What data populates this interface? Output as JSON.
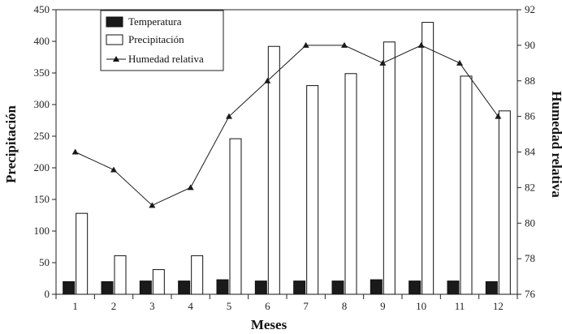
{
  "chart_data": {
    "type": "bar",
    "xlabel": "Meses",
    "ylabel": "Precipitación",
    "y2label": "Humedad relativa",
    "ylim": [
      0,
      450
    ],
    "y2lim": [
      76,
      92
    ],
    "yticks": [
      0,
      50,
      100,
      150,
      200,
      250,
      300,
      350,
      400,
      450
    ],
    "y2ticks": [
      76,
      78,
      80,
      82,
      84,
      86,
      88,
      90,
      92
    ],
    "categories": [
      "1",
      "2",
      "3",
      "4",
      "5",
      "6",
      "7",
      "8",
      "9",
      "10",
      "11",
      "12"
    ],
    "legend_position": "top-left",
    "grid": false,
    "series": [
      {
        "name": "Temperatura",
        "type": "bar",
        "axis": "left",
        "color": "#1a1a1a",
        "values": [
          20,
          20,
          21,
          21,
          23,
          21,
          21,
          21,
          23,
          21,
          21,
          20
        ]
      },
      {
        "name": "Precipitación",
        "type": "bar",
        "axis": "left",
        "color": "#ffffff",
        "values": [
          128,
          61,
          39,
          61,
          246,
          392,
          330,
          349,
          399,
          430,
          345,
          290
        ]
      },
      {
        "name": "Humedad relativa",
        "type": "line",
        "axis": "right",
        "color": "#1a1a1a",
        "marker": "triangle",
        "values": [
          84,
          83,
          81,
          82,
          86,
          88,
          90,
          90,
          89,
          90,
          89,
          86
        ]
      }
    ]
  }
}
